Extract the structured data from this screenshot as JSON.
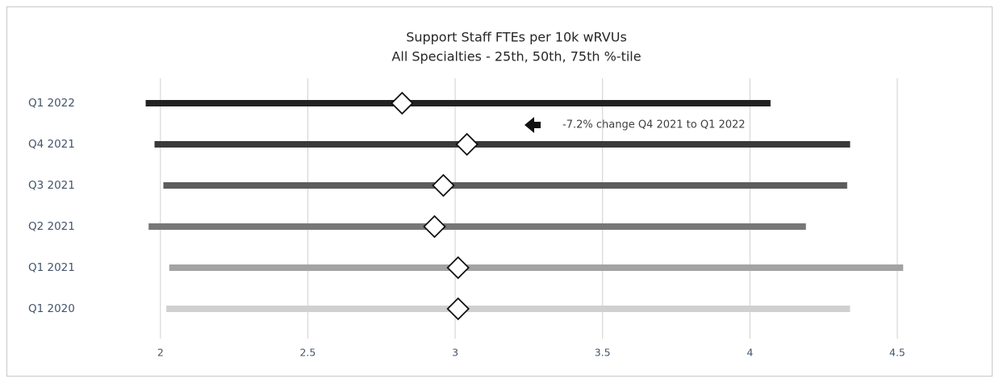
{
  "chart_data": {
    "type": "range",
    "title": [
      "Support Staff FTEs per 10k wRVUs",
      "All Specialties - 25th, 50th, 75th %-tile"
    ],
    "categories": [
      "Q1 2022",
      "Q4 2021",
      "Q3 2021",
      "Q2 2021",
      "Q1 2021",
      "Q1 2020"
    ],
    "low": [
      1.95,
      1.98,
      2.01,
      1.96,
      2.03,
      2.02
    ],
    "median": [
      2.82,
      3.04,
      2.96,
      2.93,
      3.01,
      3.01
    ],
    "high": [
      4.07,
      4.34,
      4.33,
      4.19,
      4.52,
      4.34
    ],
    "colors": [
      "#222222",
      "#3a3a3a",
      "#5c5c5c",
      "#777777",
      "#a3a3a3",
      "#d0d0d0"
    ],
    "xlim": [
      1.85,
      4.7
    ],
    "xticks": [
      2,
      2.5,
      3,
      3.5,
      4,
      4.5
    ],
    "grid": true,
    "annotation": "-7.2% change Q4 2021 to Q1 2022"
  }
}
